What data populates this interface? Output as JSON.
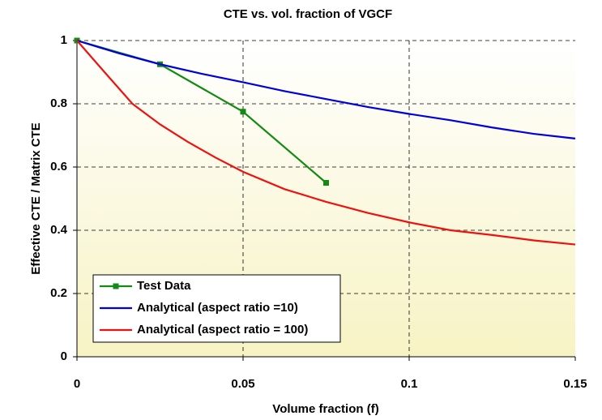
{
  "chart_data": {
    "type": "line",
    "title": "CTE vs. vol. fraction of VGCF",
    "xlabel": "Volume fraction (f)",
    "ylabel": "Effective CTE / Matrix CTE",
    "xlim": [
      0,
      0.15
    ],
    "xticks": [
      0,
      0.05,
      0.1,
      0.15
    ],
    "ylim": [
      0,
      1
    ],
    "yticks": [
      0,
      0.2,
      0.4,
      0.6,
      0.8,
      1
    ],
    "grid": true,
    "legend": "lower left",
    "series": [
      {
        "name": "Test Data",
        "color": "#138a13",
        "marker": "square",
        "x": [
          0,
          0.025,
          0.05,
          0.075
        ],
        "values": [
          1,
          0.925,
          0.775,
          0.55
        ]
      },
      {
        "name": "Analytical (aspect ratio =10)",
        "color": "#0000dd",
        "x": [
          0,
          0.0125,
          0.025,
          0.0375,
          0.05,
          0.0625,
          0.075,
          0.0875,
          0.1,
          0.1125,
          0.125,
          0.1375,
          0.15
        ],
        "values": [
          1,
          0.96,
          0.925,
          0.895,
          0.868,
          0.84,
          0.815,
          0.79,
          0.768,
          0.748,
          0.725,
          0.705,
          0.69
        ]
      },
      {
        "name": "Analytical (aspect ratio = 100)",
        "color": "#ee1111",
        "x": [
          0,
          0.0083,
          0.0167,
          0.025,
          0.0333,
          0.0417,
          0.05,
          0.0625,
          0.075,
          0.0875,
          0.1,
          0.1125,
          0.125,
          0.1375,
          0.15
        ],
        "values": [
          1,
          0.9,
          0.8,
          0.735,
          0.68,
          0.63,
          0.585,
          0.53,
          0.49,
          0.455,
          0.425,
          0.4,
          0.385,
          0.368,
          0.355
        ]
      }
    ]
  }
}
